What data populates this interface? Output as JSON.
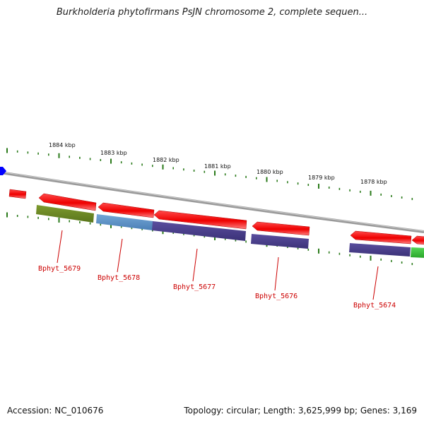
{
  "title": "Burkholderia phytofirmans PsJN chromosome 2, complete sequen...",
  "footer": {
    "accession": "Accession: NC_010676",
    "summary": "Topology: circular; Length: 3,625,999 bp; Genes: 3,169"
  },
  "scale_labels": [
    "1884 kbp",
    "1883 kbp",
    "1882 kbp",
    "1881 kbp",
    "1880 kbp",
    "1879 kbp",
    "1878 kbp"
  ],
  "gene_labels": [
    "Bphyt_5679",
    "Bphyt_5678",
    "Bphyt_5677",
    "Bphyt_5676",
    "Bphyt_5674"
  ],
  "colors": {
    "cds": "#ff0000",
    "backbone": "#888888",
    "ticks": "#2a7a1a",
    "label": "#cc0000",
    "cog_olive": "#6b8a22",
    "cog_blue": "#5a8fc4",
    "cog_purple": "#4a3f8c",
    "cog_green": "#3cbf3c",
    "marker": "#0000ff"
  }
}
